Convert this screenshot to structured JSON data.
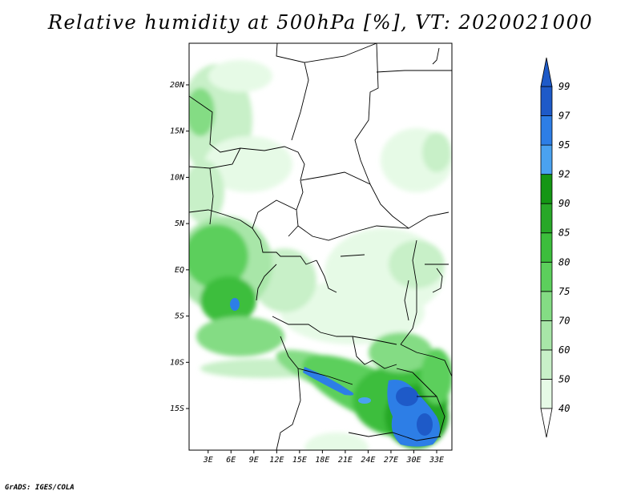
{
  "title": "Relative humidity at 500hPa [%], VT: 2020021000",
  "credit": "GrADS: IGES/COLA",
  "map": {
    "lat_ticks": [
      {
        "label": "20N",
        "value": 20
      },
      {
        "label": "15N",
        "value": 15
      },
      {
        "label": "10N",
        "value": 10
      },
      {
        "label": "5N",
        "value": 5
      },
      {
        "label": "EQ",
        "value": 0
      },
      {
        "label": "5S",
        "value": -5
      },
      {
        "label": "10S",
        "value": -10
      },
      {
        "label": "15S",
        "value": -15
      }
    ],
    "lon_ticks": [
      {
        "label": "3E",
        "value": 3
      },
      {
        "label": "6E",
        "value": 6
      },
      {
        "label": "9E",
        "value": 9
      },
      {
        "label": "12E",
        "value": 12
      },
      {
        "label": "15E",
        "value": 15
      },
      {
        "label": "18E",
        "value": 18
      },
      {
        "label": "21E",
        "value": 21
      },
      {
        "label": "24E",
        "value": 24
      },
      {
        "label": "27E",
        "value": 27
      },
      {
        "label": "30E",
        "value": 30
      },
      {
        "label": "33E",
        "value": 33
      }
    ],
    "lon_range": [
      0.5,
      35.0
    ],
    "lat_range": [
      -19.5,
      24.5
    ]
  },
  "colorbar": {
    "levels": [
      "40",
      "50",
      "60",
      "70",
      "75",
      "80",
      "85",
      "90",
      "92",
      "95",
      "97",
      "99"
    ],
    "colors": [
      "#ffffff",
      "#e6fae6",
      "#c8f0c8",
      "#a8e6a8",
      "#84dc84",
      "#5ccf5c",
      "#3cbe3c",
      "#28a828",
      "#149614",
      "#4aa2f0",
      "#2d7ee6",
      "#1e5ac8"
    ]
  },
  "colors": {
    "frame": "#000000",
    "border": "#000000"
  }
}
